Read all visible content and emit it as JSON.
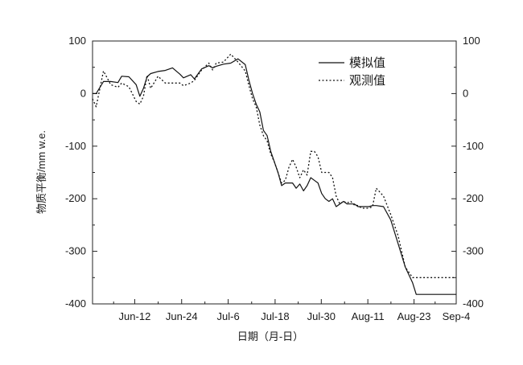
{
  "chart_data": {
    "type": "line",
    "title": "",
    "xlabel": "日期（月-日）",
    "ylabel": "物质平衡/mm w.e.",
    "ylim": [
      -400,
      100
    ],
    "yticks": [
      100,
      0,
      -100,
      -200,
      -300,
      -400
    ],
    "ytick_labels": [
      "100",
      "0",
      "-100",
      "-200",
      "-300",
      "-400"
    ],
    "xlim": [
      0,
      100
    ],
    "xticks": [
      {
        "x": 11.6,
        "label": "Jun-12"
      },
      {
        "x": 24.5,
        "label": "Jun-24"
      },
      {
        "x": 37.3,
        "label": "Jul-6"
      },
      {
        "x": 50.2,
        "label": "Jul-18"
      },
      {
        "x": 62.9,
        "label": "Jul-30"
      },
      {
        "x": 75.7,
        "label": "Aug-11"
      },
      {
        "x": 88.4,
        "label": "Aug-23"
      },
      {
        "x": 100.0,
        "label": "Sep-4"
      }
    ],
    "legend_position": "top-right",
    "grid": false,
    "series": [
      {
        "name": "模拟值",
        "style": "solid",
        "color": "#111111",
        "x": [
          0,
          1,
          3,
          5,
          7,
          8,
          10,
          12,
          13,
          14,
          15,
          16,
          18,
          20,
          22,
          24,
          25,
          27,
          28,
          30,
          32,
          33,
          34,
          36,
          38,
          40,
          42,
          43,
          44,
          45,
          46,
          47,
          48,
          49,
          50,
          51,
          52,
          53,
          54,
          55,
          56,
          57,
          58,
          59,
          60,
          61,
          62,
          63,
          64,
          65,
          66,
          67,
          68,
          69,
          70,
          71,
          72,
          73,
          74,
          75,
          76,
          77,
          78,
          80,
          82,
          84,
          86,
          88,
          89,
          90,
          91,
          92,
          93,
          94,
          95,
          96,
          97,
          98,
          100
        ],
        "y": [
          0,
          0,
          23,
          23,
          21,
          33,
          32,
          17,
          -5,
          10,
          32,
          38,
          42,
          44,
          49,
          37,
          30,
          36,
          28,
          47,
          53,
          49,
          52,
          56,
          58,
          66,
          55,
          25,
          0,
          -20,
          -35,
          -70,
          -80,
          -110,
          -130,
          -150,
          -175,
          -170,
          -170,
          -170,
          -180,
          -172,
          -185,
          -175,
          -160,
          -165,
          -170,
          -190,
          -200,
          -205,
          -200,
          -215,
          -210,
          -205,
          -210,
          -210,
          -210,
          -215,
          -215,
          -215,
          -215,
          -213,
          -213,
          -215,
          -240,
          -285,
          -330,
          -360,
          -382,
          -382,
          -382,
          -382,
          -382,
          -382,
          -382,
          -382,
          -382,
          -382,
          -382
        ]
      },
      {
        "name": "观测值",
        "style": "dotted",
        "color": "#111111",
        "x": [
          0,
          1,
          3,
          5,
          7,
          8,
          10,
          12,
          13,
          14,
          15,
          16,
          18,
          20,
          22,
          24,
          25,
          27,
          28,
          30,
          32,
          33,
          34,
          36,
          38,
          40,
          42,
          43,
          44,
          45,
          46,
          47,
          48,
          49,
          50,
          51,
          52,
          53,
          54,
          55,
          56,
          57,
          58,
          59,
          60,
          61,
          62,
          63,
          64,
          65,
          66,
          67,
          68,
          69,
          70,
          71,
          72,
          73,
          74,
          75,
          76,
          77,
          78,
          80,
          82,
          84,
          86,
          88,
          89,
          90,
          91,
          92,
          93,
          94,
          95,
          96,
          97,
          98,
          100
        ],
        "y": [
          -10,
          -25,
          43,
          17,
          12,
          20,
          13,
          -15,
          -20,
          -5,
          35,
          10,
          33,
          20,
          20,
          20,
          15,
          20,
          25,
          45,
          58,
          45,
          58,
          60,
          75,
          60,
          43,
          15,
          -10,
          -25,
          -60,
          -80,
          -90,
          -115,
          -130,
          -150,
          -170,
          -165,
          -140,
          -125,
          -140,
          -160,
          -145,
          -155,
          -110,
          -110,
          -120,
          -150,
          -150,
          -150,
          -160,
          -195,
          -210,
          -205,
          -208,
          -205,
          -212,
          -213,
          -218,
          -218,
          -218,
          -215,
          -180,
          -195,
          -230,
          -270,
          -330,
          -350,
          -350,
          -350,
          -350,
          -350,
          -350,
          -350,
          -350,
          -350,
          -350,
          -350,
          -350
        ]
      }
    ]
  }
}
